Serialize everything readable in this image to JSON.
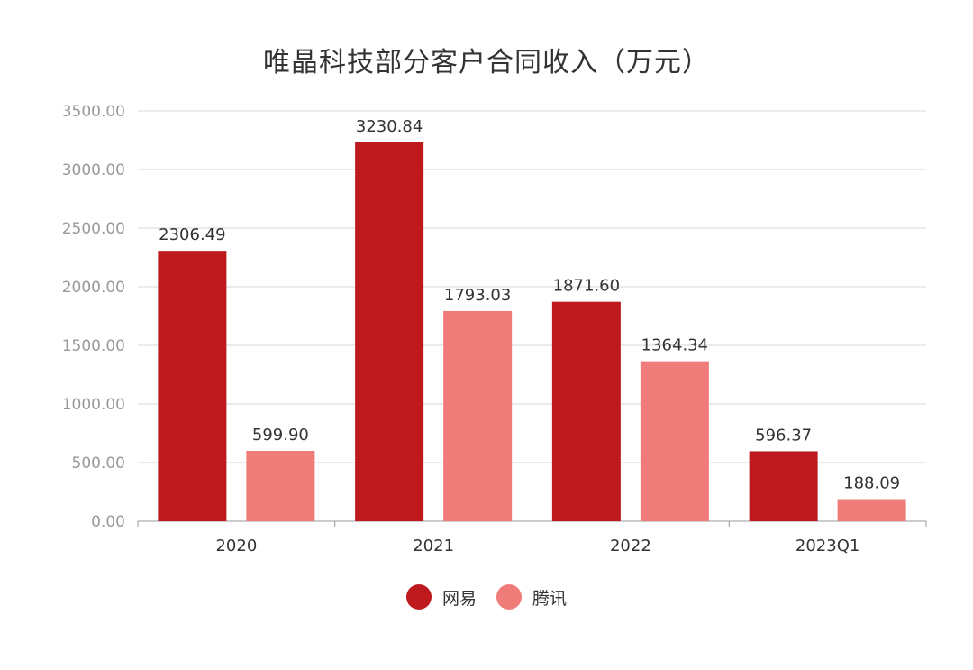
{
  "chart_data": {
    "type": "bar",
    "title": "唯晶科技部分客户合同收入（万元）",
    "categories": [
      "2020",
      "2021",
      "2022",
      "2023Q1"
    ],
    "series": [
      {
        "name": "网易",
        "color": "#be1a1e",
        "values": [
          2306.49,
          3230.84,
          1871.6,
          596.37
        ],
        "labels": [
          "2306.49",
          "3230.84",
          "1871.60",
          "596.37"
        ]
      },
      {
        "name": "腾讯",
        "color": "#f07c7a",
        "values": [
          599.9,
          1793.03,
          1364.34,
          188.09
        ],
        "labels": [
          "599.90",
          "1793.03",
          "1364.34",
          "188.09"
        ]
      }
    ],
    "y_ticks": [
      "0.00",
      "500.00",
      "1000.00",
      "1500.00",
      "2000.00",
      "2500.00",
      "3000.00",
      "3500.00"
    ],
    "ylim": [
      0,
      3500
    ],
    "xlabel": "",
    "ylabel": "",
    "grid": true,
    "legend_position": "bottom-center"
  }
}
